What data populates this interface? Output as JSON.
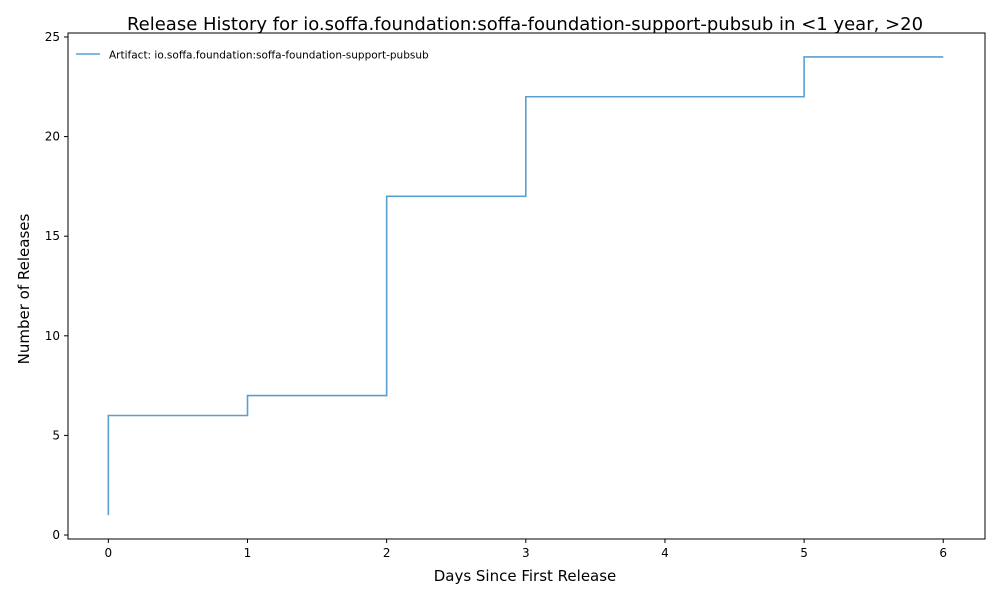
{
  "chart_data": {
    "type": "line",
    "step": "post",
    "title": "Release History for io.soffa.foundation:soffa-foundation-support-pubsub in <1 year, >20",
    "xlabel": "Days Since First Release",
    "ylabel": "Number of Releases",
    "xlim": [
      -0.29,
      6.3
    ],
    "ylim": [
      -0.2,
      25.2
    ],
    "x_ticks": [
      0,
      1,
      2,
      3,
      4,
      5,
      6
    ],
    "y_ticks": [
      0,
      5,
      10,
      15,
      20,
      25
    ],
    "grid": false,
    "legend_position": "top-left",
    "series": [
      {
        "name": "Artifact: io.soffa.foundation:soffa-foundation-support-pubsub",
        "color": "#5b9fcf",
        "x": [
          0,
          0,
          1,
          2,
          3,
          5,
          6
        ],
        "y": [
          1,
          6,
          7,
          17,
          22,
          24,
          24
        ]
      }
    ]
  }
}
